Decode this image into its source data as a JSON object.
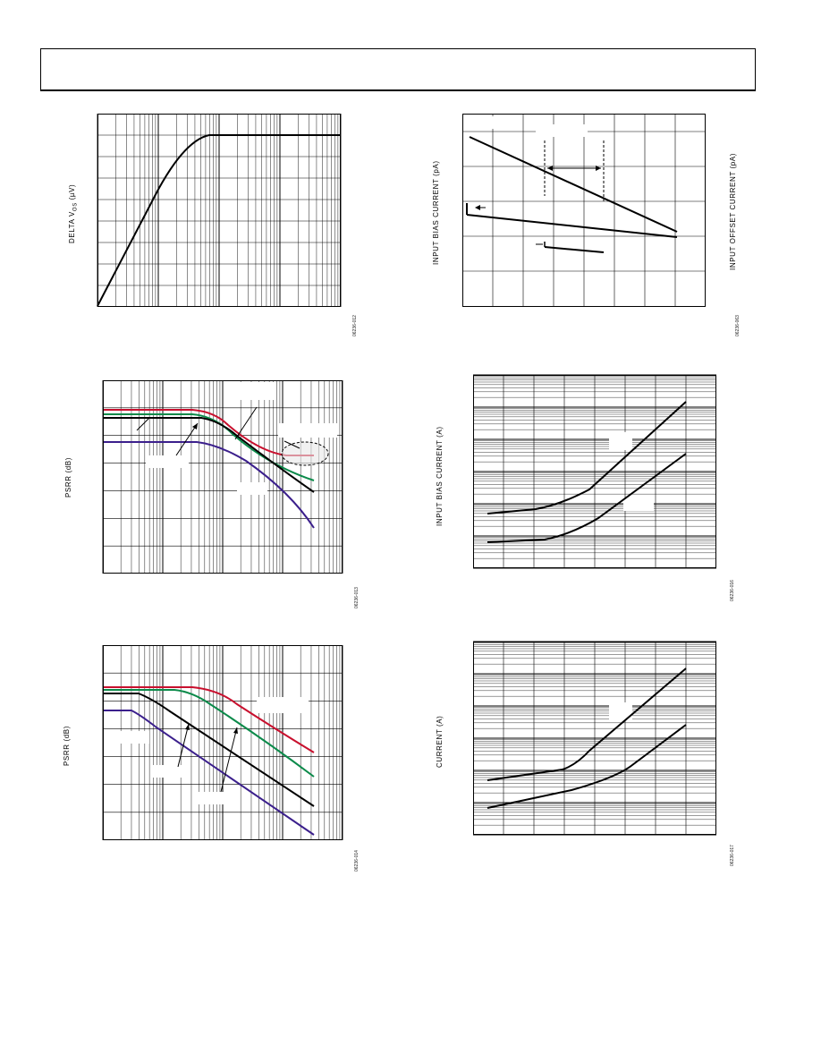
{
  "charts": {
    "delta_vos": {
      "ylabel": "DELTA V",
      "ylabel_sub": "OS",
      "ylabel_unit": " (µV)",
      "figure_id": "06236-012"
    },
    "bias_temp": {
      "ylabel_left": "INPUT BIAS CURRENT (pA)",
      "ylabel_right": "INPUT OFFSET CURRENT (pA)",
      "figure_id": "06236-063"
    },
    "psrr_pos": {
      "ylabel": "PSRR (dB)",
      "figure_id": "06236-013"
    },
    "bias_log": {
      "ylabel": "INPUT BIAS CURRENT (A)",
      "figure_id": "06236-016"
    },
    "psrr_neg": {
      "ylabel": "PSRR (dB)",
      "figure_id": "06236-014"
    },
    "current_log": {
      "ylabel": "CURRENT (A)",
      "figure_id": "06236-017"
    }
  },
  "colors": {
    "red": "#c8102e",
    "green": "#0b8a4a",
    "purple": "#3b1f8c",
    "black": "#000000"
  }
}
